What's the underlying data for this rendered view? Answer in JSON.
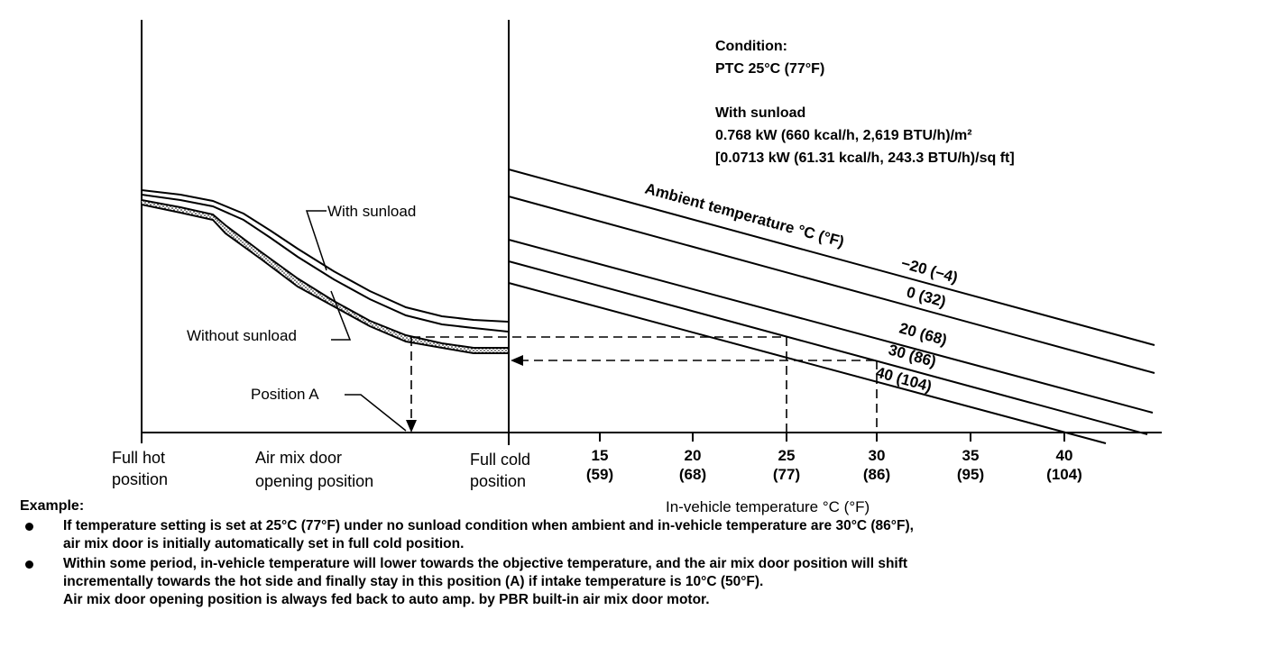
{
  "chart_data": {
    "type": "line",
    "left_panel": {
      "xlabel_left": [
        "Full hot",
        "position"
      ],
      "xlabel_center": [
        "Air mix door",
        "opening position"
      ],
      "xlabel_right": [
        "Full cold",
        "position"
      ],
      "annotations": {
        "with_sunload": "With sunload",
        "without_sunload": "Without sunload",
        "position_a": "Position A"
      }
    },
    "right_panel": {
      "xlabel": "In-vehicle temperature °C (°F)",
      "x_ticks": [
        {
          "c": "15",
          "f": "(59)"
        },
        {
          "c": "20",
          "f": "(68)"
        },
        {
          "c": "25",
          "f": "(77)"
        },
        {
          "c": "30",
          "f": "(86)"
        },
        {
          "c": "35",
          "f": "(95)"
        },
        {
          "c": "40",
          "f": "(104)"
        }
      ],
      "x_range_c": [
        10,
        45
      ],
      "legend_title": "Ambient temperature °C (°F)",
      "series": [
        {
          "name": "−20 (−4)"
        },
        {
          "name": "0 (32)"
        },
        {
          "name": "20 (68)"
        },
        {
          "name": "30 (86)"
        },
        {
          "name": "40 (104)"
        }
      ]
    },
    "condition": {
      "title": "Condition:",
      "ptc": "PTC 25°C (77°F)",
      "sunload_title": "With sunload",
      "sunload_line1": "0.768 kW (660 kcal/h, 2,619 BTU/h)/m²",
      "sunload_line2": "[0.0713 kW (61.31 kcal/h, 243.3 BTU/h)/sq ft]"
    }
  },
  "example": {
    "title": "Example:",
    "bullet1_line1": "If temperature setting is set at 25°C (77°F) under no sunload condition when ambient and in-vehicle temperature are 30°C (86°F),",
    "bullet1_line2": "air mix door is initially automatically set in full cold position.",
    "bullet2_line1": "Within some period, in-vehicle temperature will lower towards the objective temperature, and the air mix door position will shift",
    "bullet2_line2": "incrementally towards the hot side and finally stay in this position (A) if intake temperature is 10°C (50°F).",
    "bullet2_line3": "Air mix door opening position is always fed back to auto amp. by PBR built-in air mix door motor."
  }
}
